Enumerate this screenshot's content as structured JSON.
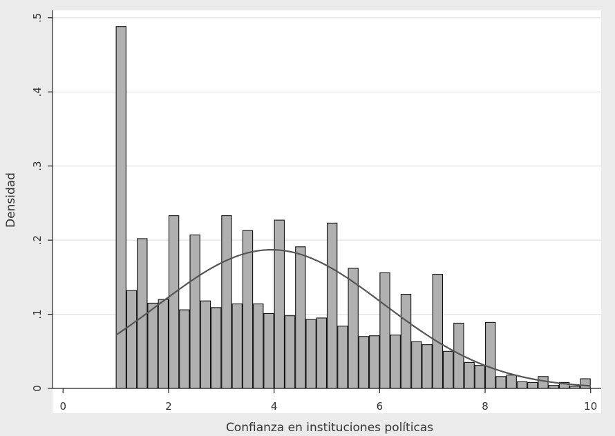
{
  "chart_data": {
    "type": "bar",
    "title": "",
    "xlabel": "Confianza en instituciones políticas",
    "ylabel": "Densidad",
    "xlim": [
      -0.2,
      10.2
    ],
    "ylim": [
      0,
      0.51
    ],
    "xticks": [
      0,
      2,
      4,
      6,
      8,
      10
    ],
    "xtick_labels": [
      "0",
      "2",
      "4",
      "6",
      "8",
      "10"
    ],
    "yticks": [
      0,
      0.1,
      0.2,
      0.3,
      0.4,
      0.5
    ],
    "ytick_labels": [
      "0",
      ".1",
      ".2",
      ".3",
      ".4",
      ".5"
    ],
    "grid": true,
    "legend": "none",
    "bar_color": "#b0b0b0",
    "bar_edge_color": "#111111",
    "curve_color": "#555555",
    "bar_width": 0.2,
    "x": [
      1.0,
      1.2,
      1.4,
      1.6,
      1.8,
      2.0,
      2.2,
      2.4,
      2.6,
      2.8,
      3.0,
      3.2,
      3.4,
      3.6,
      3.8,
      4.0,
      4.2,
      4.4,
      4.6,
      4.8,
      5.0,
      5.2,
      5.4,
      5.6,
      5.8,
      6.0,
      6.2,
      6.4,
      6.6,
      6.8,
      7.0,
      7.2,
      7.4,
      7.6,
      7.8,
      8.0,
      8.2,
      8.4,
      8.6,
      8.8,
      9.0,
      9.2,
      9.4,
      9.6,
      9.8
    ],
    "values": [
      0.488,
      0.132,
      0.202,
      0.115,
      0.12,
      0.233,
      0.106,
      0.207,
      0.118,
      0.109,
      0.233,
      0.114,
      0.213,
      0.114,
      0.101,
      0.227,
      0.098,
      0.191,
      0.093,
      0.095,
      0.223,
      0.084,
      0.162,
      0.07,
      0.071,
      0.156,
      0.072,
      0.127,
      0.063,
      0.059,
      0.154,
      0.05,
      0.088,
      0.035,
      0.031,
      0.089,
      0.016,
      0.018,
      0.009,
      0.008,
      0.016,
      0.004,
      0.008,
      0.003,
      0.013
    ],
    "overlay_curve": {
      "type": "normal_density",
      "x_range": [
        1,
        10
      ],
      "peak_x": 3.95,
      "peak_y": 0.187
    }
  }
}
